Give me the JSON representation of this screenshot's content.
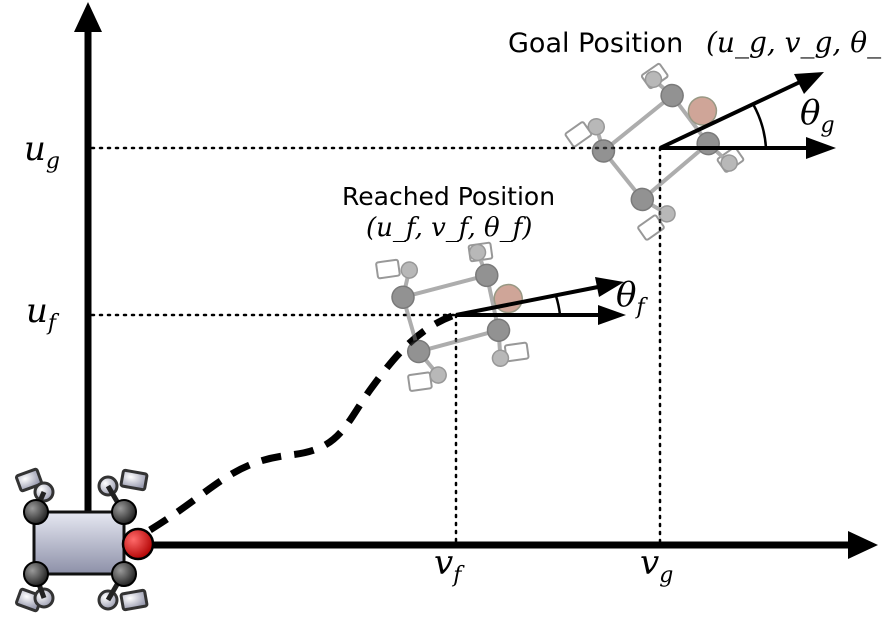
{
  "labels": {
    "goal_title": "Goal Position",
    "goal_tuple": "(u_g, v_g, θ_g)",
    "reached_title": "Reached Position",
    "reached_tuple": "(u_f, v_f, θ_f)"
  },
  "axis_ticks": {
    "y": [
      {
        "var": "u",
        "sub": "g"
      },
      {
        "var": "u",
        "sub": "f"
      }
    ],
    "x": [
      {
        "var": "v",
        "sub": "f"
      },
      {
        "var": "v",
        "sub": "g"
      }
    ]
  },
  "angles": {
    "goal": {
      "var": "θ",
      "sub": "g"
    },
    "reached": {
      "var": "θ",
      "sub": "f"
    }
  },
  "colors": {
    "axis": "#000000",
    "trajectory": "#000000",
    "robot_body_top": "#d9dbe8",
    "robot_body_bottom": "#8d90a8",
    "robot_joint": "#3a3a3a",
    "robot_front_marker": "#d81818",
    "ghost_robot": "#7a7a7a",
    "ghost_front_marker": "#c08070"
  }
}
